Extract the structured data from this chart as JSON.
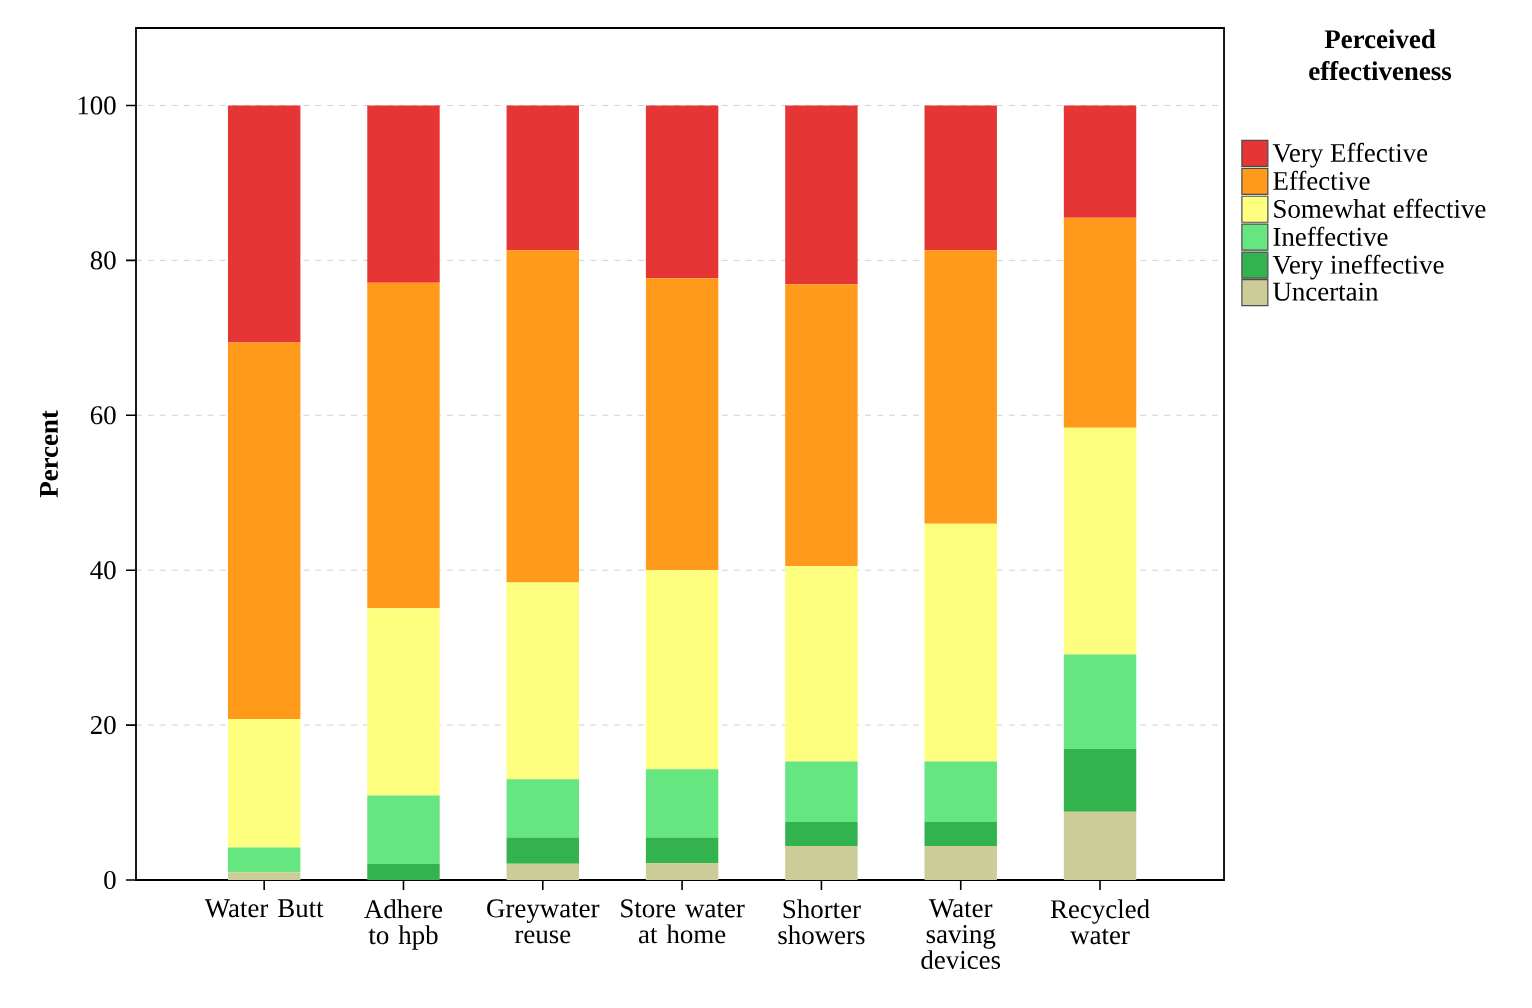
{
  "chart_data": {
    "type": "bar",
    "stacked": true,
    "ylabel": "Percent",
    "legend_title": "Perceived effectiveness",
    "categories": [
      "Water Butt",
      "Adhere to hpb",
      "Greywater reuse",
      "Store water at home",
      "Shorter showers",
      "Water saving devices",
      "Recycled water"
    ],
    "series": [
      {
        "name": "Uncertain",
        "color": "#cccc99",
        "values": [
          1.0,
          0,
          2.1,
          2.2,
          4.4,
          4.4,
          8.8
        ]
      },
      {
        "name": "Very ineffective",
        "color": "#33b34d",
        "values": [
          0,
          2.1,
          3.4,
          3.3,
          3.1,
          3.1,
          8.1
        ]
      },
      {
        "name": "Ineffective",
        "color": "#66e680",
        "values": [
          3.2,
          8.8,
          7.5,
          8.8,
          7.8,
          7.8,
          12.2
        ]
      },
      {
        "name": "Somewhat effective",
        "color": "#ffff7f",
        "values": [
          16.6,
          24.2,
          25.4,
          25.7,
          25.2,
          30.7,
          29.3
        ]
      },
      {
        "name": "Effective",
        "color": "#ff9a1a",
        "values": [
          48.6,
          42.0,
          42.9,
          37.7,
          36.4,
          35.3,
          27.1
        ]
      },
      {
        "name": "Very Effective",
        "color": "#e63535",
        "values": [
          30.6,
          22.9,
          18.7,
          22.3,
          23.1,
          18.7,
          14.5
        ]
      }
    ],
    "ylim": [
      0,
      110
    ],
    "yticks": [
      {
        "value": 0,
        "label": "0"
      },
      {
        "value": 20,
        "label": "20"
      },
      {
        "value": 40,
        "label": "40"
      },
      {
        "value": 60,
        "label": "60"
      },
      {
        "value": 80,
        "label": "80"
      },
      {
        "value": 100,
        "label": "100"
      }
    ],
    "grid": "y",
    "legend": "right"
  }
}
